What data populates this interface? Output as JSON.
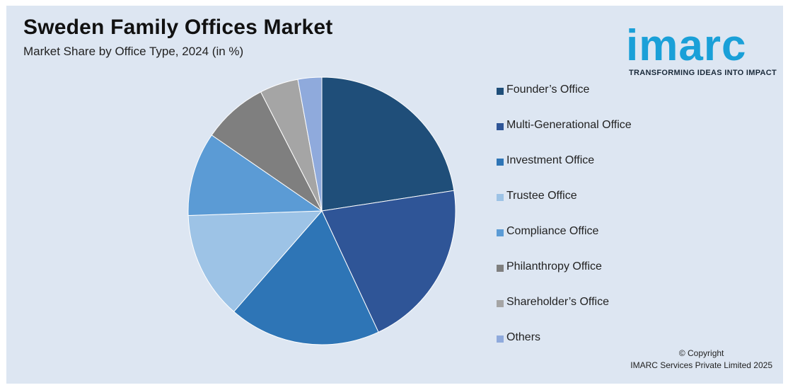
{
  "header": {
    "title": "Sweden Family Offices Market",
    "subtitle": "Market Share by Office Type, 2024 (in %)"
  },
  "logo": {
    "word": "imarc",
    "tagline": "TRANSFORMING IDEAS INTO IMPACT",
    "color": "#1aa0d8"
  },
  "chart_data": {
    "type": "pie",
    "title": "Sweden Family Offices Market",
    "subtitle": "Market Share by Office Type, 2024 (in %)",
    "start_angle_deg": 0,
    "direction": "clockwise",
    "legend_position": "right",
    "slices": [
      {
        "label": "Founder’s Office",
        "value": 22.7,
        "color": "#1f4e79"
      },
      {
        "label": "Multi-Generational Office",
        "value": 20.6,
        "color": "#2f5597"
      },
      {
        "label": "Investment Office",
        "value": 18.5,
        "color": "#2e75b6"
      },
      {
        "label": "Trustee Office",
        "value": 13.1,
        "color": "#9dc3e6"
      },
      {
        "label": "Compliance Office",
        "value": 10.2,
        "color": "#5b9bd5"
      },
      {
        "label": "Philanthropy Office",
        "value": 7.9,
        "color": "#7f7f7f"
      },
      {
        "label": "Shareholder’s Office",
        "value": 4.7,
        "color": "#a5a5a5"
      },
      {
        "label": "Others",
        "value": 2.9,
        "color": "#8faadc"
      }
    ]
  },
  "footer": {
    "copyright_line1": "© Copyright",
    "copyright_line2": "IMARC Services Private Limited 2025"
  }
}
